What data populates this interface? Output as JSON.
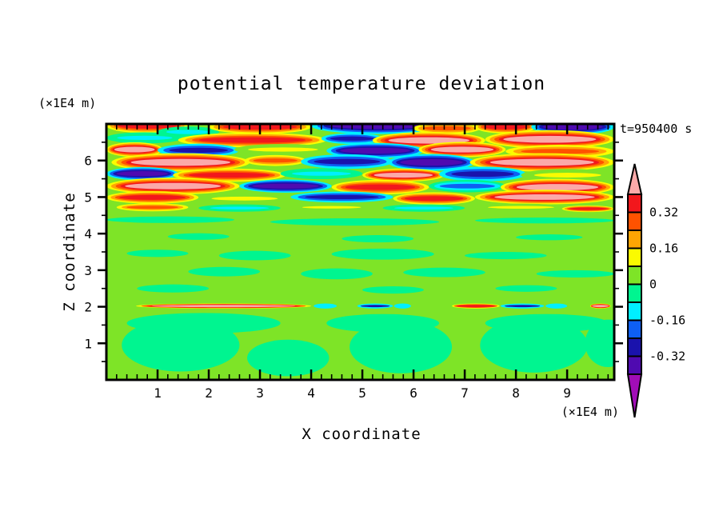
{
  "page": {
    "background": "#ffffff"
  },
  "chart_data": {
    "type": "contour",
    "title": "potential temperature deviation",
    "time_label": "t=950400 s",
    "xlabel": "X coordinate",
    "ylabel": "Z coordinate",
    "x_unit_label": "(×1E4 m)",
    "y_unit_label": "(×1E4 m)",
    "x_range": [
      0,
      9.92
    ],
    "z_range": [
      0,
      7
    ],
    "x_major_ticks": [
      1,
      2,
      3,
      4,
      5,
      6,
      7,
      8,
      9
    ],
    "x_minor_step": 0.2,
    "z_major_ticks": [
      1,
      2,
      3,
      4,
      5,
      6
    ],
    "z_minor_step": 0.5,
    "grid": false,
    "palette": [
      "#FBA9A9",
      "#F2171C",
      "#FF5200",
      "#FFA503",
      "#FBFB00",
      "#7EE427",
      "#00F590",
      "#00EFFF",
      "#0E5FF3",
      "#1A12AC",
      "#4F0AB0",
      "#A10DB7"
    ],
    "colorbar": {
      "top_value": 0.4,
      "step": 0.08,
      "segment_color_indices": [
        1,
        2,
        3,
        4,
        5,
        6,
        7,
        8,
        9,
        10
      ],
      "arrow_top_color_index": 0,
      "arrow_bottom_color_index": 11,
      "tick_labels": [
        {
          "value": 0.32,
          "text": "0.32"
        },
        {
          "value": 0.16,
          "text": "0.16"
        },
        {
          "value": 0,
          "text": "0"
        },
        {
          "value": -0.16,
          "text": "-0.16"
        },
        {
          "value": -0.32,
          "text": "-0.32"
        }
      ]
    },
    "field": {
      "description": "Turbulent layered warm/cold lenses above z=4.6, near-zero deviation (green) below with convective plumes near the surface and a thin mixed shear streak at z=2.",
      "background_color_index": 5,
      "ring_presets": {
        "warm_pink": [
          4,
          3,
          2,
          1,
          0
        ],
        "warm_red": [
          4,
          3,
          2,
          1
        ],
        "warm_orange": [
          4,
          3,
          2
        ],
        "warm_yellow": [
          5,
          4
        ],
        "cold_indigo": [
          7,
          8,
          9,
          10
        ],
        "cold_navy": [
          7,
          8,
          9
        ],
        "cold_blue": [
          6,
          7,
          8
        ],
        "cold_cyan": [
          6,
          7
        ]
      },
      "upper_streaks": [
        [
          0.0,
          1.6,
          6.95,
          0.4,
          "warm_red"
        ],
        [
          1.0,
          2.2,
          6.78,
          0.3,
          "cold_cyan"
        ],
        [
          2.0,
          4.0,
          6.92,
          0.38,
          "warm_red"
        ],
        [
          4.0,
          6.6,
          6.95,
          0.45,
          "cold_indigo"
        ],
        [
          6.0,
          7.3,
          6.88,
          0.32,
          "warm_orange"
        ],
        [
          7.2,
          8.4,
          6.92,
          0.36,
          "warm_red"
        ],
        [
          8.3,
          9.92,
          6.92,
          0.42,
          "cold_indigo"
        ],
        [
          0.0,
          1.5,
          6.62,
          0.3,
          "cold_cyan"
        ],
        [
          1.4,
          4.3,
          6.56,
          0.4,
          "warm_red"
        ],
        [
          4.2,
          5.4,
          6.6,
          0.3,
          "cold_navy"
        ],
        [
          5.2,
          7.4,
          6.55,
          0.46,
          "warm_pink"
        ],
        [
          7.4,
          9.92,
          6.58,
          0.5,
          "warm_pink"
        ],
        [
          0.0,
          1.1,
          6.3,
          0.4,
          "warm_pink"
        ],
        [
          1.0,
          2.6,
          6.28,
          0.36,
          "cold_navy"
        ],
        [
          2.5,
          4.4,
          6.3,
          0.3,
          "warm_yellow"
        ],
        [
          4.3,
          6.2,
          6.27,
          0.42,
          "cold_indigo"
        ],
        [
          6.1,
          7.8,
          6.3,
          0.42,
          "warm_pink"
        ],
        [
          7.8,
          9.92,
          6.25,
          0.36,
          "warm_orange"
        ],
        [
          0.1,
          2.8,
          5.95,
          0.5,
          "warm_pink"
        ],
        [
          2.7,
          3.9,
          6.0,
          0.3,
          "warm_orange"
        ],
        [
          3.8,
          5.6,
          5.97,
          0.4,
          "cold_navy"
        ],
        [
          5.5,
          7.2,
          5.95,
          0.46,
          "cold_indigo"
        ],
        [
          7.1,
          9.92,
          5.95,
          0.5,
          "warm_pink"
        ],
        [
          0.0,
          1.4,
          5.64,
          0.36,
          "cold_indigo"
        ],
        [
          1.3,
          3.5,
          5.6,
          0.36,
          "warm_red"
        ],
        [
          3.4,
          5.0,
          5.64,
          0.3,
          "cold_cyan"
        ],
        [
          5.0,
          6.6,
          5.6,
          0.36,
          "warm_pink"
        ],
        [
          6.5,
          8.2,
          5.63,
          0.4,
          "cold_navy"
        ],
        [
          8.1,
          9.92,
          5.6,
          0.34,
          "warm_yellow"
        ],
        [
          0.0,
          2.6,
          5.3,
          0.46,
          "warm_pink"
        ],
        [
          2.6,
          4.4,
          5.3,
          0.36,
          "cold_indigo"
        ],
        [
          4.4,
          6.3,
          5.27,
          0.4,
          "warm_red"
        ],
        [
          6.3,
          7.8,
          5.3,
          0.34,
          "cold_blue"
        ],
        [
          7.7,
          9.92,
          5.27,
          0.46,
          "warm_pink"
        ],
        [
          0.0,
          1.8,
          4.99,
          0.34,
          "warm_red"
        ],
        [
          1.8,
          3.6,
          4.96,
          0.28,
          "warm_yellow"
        ],
        [
          3.6,
          5.6,
          5.0,
          0.3,
          "cold_navy"
        ],
        [
          5.6,
          7.2,
          4.96,
          0.34,
          "warm_red"
        ],
        [
          7.2,
          9.92,
          5.0,
          0.4,
          "warm_pink"
        ],
        [
          0.2,
          1.6,
          4.72,
          0.22,
          "warm_orange"
        ],
        [
          1.8,
          3.4,
          4.7,
          0.2,
          "cold_cyan"
        ],
        [
          3.6,
          5.2,
          4.72,
          0.18,
          "warm_yellow"
        ],
        [
          5.4,
          7.0,
          4.7,
          0.2,
          "cold_cyan"
        ],
        [
          7.2,
          9.0,
          4.72,
          0.2,
          "warm_yellow"
        ],
        [
          8.9,
          9.92,
          4.68,
          0.18,
          "warm_red"
        ]
      ],
      "mid_patches_color_index": 6,
      "mid_patches": [
        [
          0.0,
          2.5,
          4.38,
          0.18
        ],
        [
          3.2,
          6.5,
          4.32,
          0.2
        ],
        [
          7.2,
          9.92,
          4.36,
          0.16
        ],
        [
          1.2,
          2.4,
          3.92,
          0.18
        ],
        [
          4.6,
          6.0,
          3.86,
          0.2
        ],
        [
          8.0,
          9.3,
          3.9,
          0.16
        ],
        [
          0.4,
          1.6,
          3.46,
          0.2
        ],
        [
          2.2,
          3.6,
          3.4,
          0.26
        ],
        [
          4.4,
          6.4,
          3.44,
          0.3
        ],
        [
          7.0,
          8.6,
          3.4,
          0.2
        ],
        [
          1.6,
          3.0,
          2.96,
          0.26
        ],
        [
          3.8,
          5.2,
          2.9,
          0.3
        ],
        [
          5.8,
          7.4,
          2.94,
          0.26
        ],
        [
          8.4,
          9.92,
          2.9,
          0.2
        ],
        [
          0.6,
          2.0,
          2.5,
          0.22
        ],
        [
          5.0,
          6.2,
          2.46,
          0.2
        ],
        [
          7.6,
          8.8,
          2.5,
          0.18
        ]
      ],
      "shear_line": {
        "z": 2.02,
        "h": 0.14,
        "presets": {
          "warm": [
            4,
            2,
            1
          ],
          "warm_pink": [
            4,
            2,
            1,
            0
          ],
          "cold": [
            7,
            9
          ],
          "cyan": [
            7
          ]
        },
        "segments": [
          [
            0.58,
            4.0,
            "warm_pink"
          ],
          [
            4.05,
            4.5,
            "cyan"
          ],
          [
            4.9,
            5.6,
            "cold"
          ],
          [
            5.62,
            5.95,
            "cyan"
          ],
          [
            6.75,
            7.68,
            "warm"
          ],
          [
            7.7,
            8.55,
            "cold"
          ],
          [
            8.58,
            9.0,
            "cyan"
          ],
          [
            9.45,
            9.85,
            "warm_pink"
          ]
        ]
      },
      "bottom_lobes_color_index": 6,
      "bottom_lobes": [
        [
          1.45,
          0.95,
          1.15,
          0.72
        ],
        [
          1.9,
          1.55,
          1.5,
          0.28
        ],
        [
          3.55,
          0.6,
          0.8,
          0.5
        ],
        [
          5.75,
          0.9,
          1.0,
          0.72
        ],
        [
          5.4,
          1.55,
          1.1,
          0.25
        ],
        [
          8.35,
          0.95,
          1.05,
          0.75
        ],
        [
          8.6,
          1.55,
          1.2,
          0.25
        ],
        [
          9.8,
          1.0,
          0.45,
          0.65
        ]
      ]
    }
  }
}
